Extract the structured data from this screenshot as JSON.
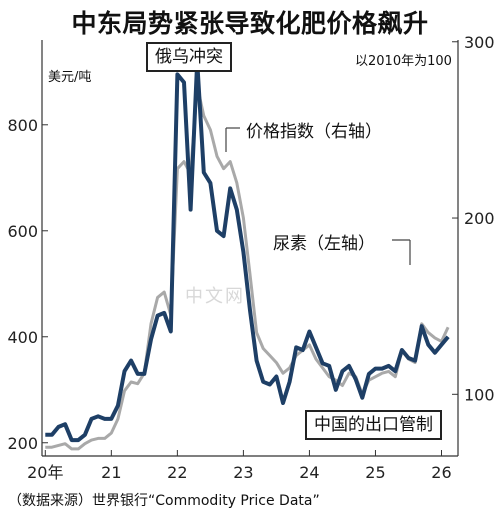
{
  "title": "中东局势紧张导致化肥价格飙升",
  "event_label": "俄乌冲突",
  "policy_label": "中国的出口管制",
  "left_unit": "美元/吨",
  "right_note": "以2010年为100",
  "index_label": "价格指数（右轴）",
  "urea_label": "尿素（左轴）",
  "source": "（数据来源）世界银行“Commodity Price Data”",
  "watermark": "中文网",
  "colors": {
    "urea": "#1e3f66",
    "index": "#a9a9a9",
    "axis": "#333333"
  },
  "chart_data": {
    "type": "line",
    "x": [
      2020.0,
      2020.1,
      2020.2,
      2020.3,
      2020.4,
      2020.5,
      2020.6,
      2020.7,
      2020.8,
      2020.9,
      2021.0,
      2021.1,
      2021.2,
      2021.3,
      2021.4,
      2021.5,
      2021.6,
      2021.7,
      2021.8,
      2021.9,
      2022.0,
      2022.1,
      2022.2,
      2022.3,
      2022.4,
      2022.5,
      2022.6,
      2022.7,
      2022.8,
      2022.9,
      2023.0,
      2023.1,
      2023.2,
      2023.3,
      2023.4,
      2023.5,
      2023.6,
      2023.7,
      2023.8,
      2023.9,
      2024.0,
      2024.1,
      2024.2,
      2024.3,
      2024.4,
      2024.5,
      2024.6,
      2024.7,
      2024.8,
      2024.9,
      2025.0,
      2025.1,
      2025.2,
      2025.3,
      2025.4,
      2025.5,
      2025.6,
      2025.7,
      2025.8,
      2025.9,
      2026.0,
      2026.1
    ],
    "series": [
      {
        "name": "尿素（左轴）",
        "axis": "left",
        "values": [
          215,
          215,
          230,
          235,
          205,
          205,
          215,
          245,
          250,
          245,
          245,
          270,
          335,
          355,
          330,
          330,
          395,
          440,
          445,
          410,
          895,
          880,
          640,
          920,
          710,
          690,
          600,
          590,
          680,
          640,
          560,
          450,
          355,
          315,
          310,
          325,
          275,
          315,
          380,
          375,
          410,
          380,
          350,
          345,
          300,
          335,
          345,
          320,
          285,
          330,
          340,
          340,
          345,
          335,
          375,
          360,
          355,
          420,
          385,
          370,
          385,
          400
        ]
      },
      {
        "name": "价格指数（右轴）",
        "axis": "right",
        "values": [
          70,
          70,
          71,
          72,
          69,
          69,
          72,
          74,
          75,
          75,
          78,
          86,
          102,
          107,
          106,
          112,
          140,
          155,
          158,
          145,
          228,
          232,
          225,
          275,
          258,
          250,
          235,
          228,
          232,
          220,
          200,
          168,
          135,
          126,
          122,
          118,
          112,
          115,
          122,
          125,
          128,
          120,
          115,
          110,
          108,
          105,
          112,
          110,
          100,
          108,
          110,
          112,
          113,
          110,
          125,
          120,
          118,
          140,
          135,
          132,
          130,
          138
        ]
      }
    ],
    "x_ticks": [
      2020,
      2021,
      2022,
      2023,
      2024,
      2025,
      2026
    ],
    "x_tick_labels": [
      "20年",
      "21",
      "22",
      "23",
      "24",
      "25",
      "26"
    ],
    "y_left_ticks": [
      200,
      400,
      600,
      800
    ],
    "y_right_ticks": [
      100,
      200,
      300
    ],
    "ylim_left": [
      175,
      960
    ],
    "ylim_right": [
      65,
      301
    ],
    "xlim": [
      2019.95,
      2026.25
    ],
    "grid": false
  }
}
